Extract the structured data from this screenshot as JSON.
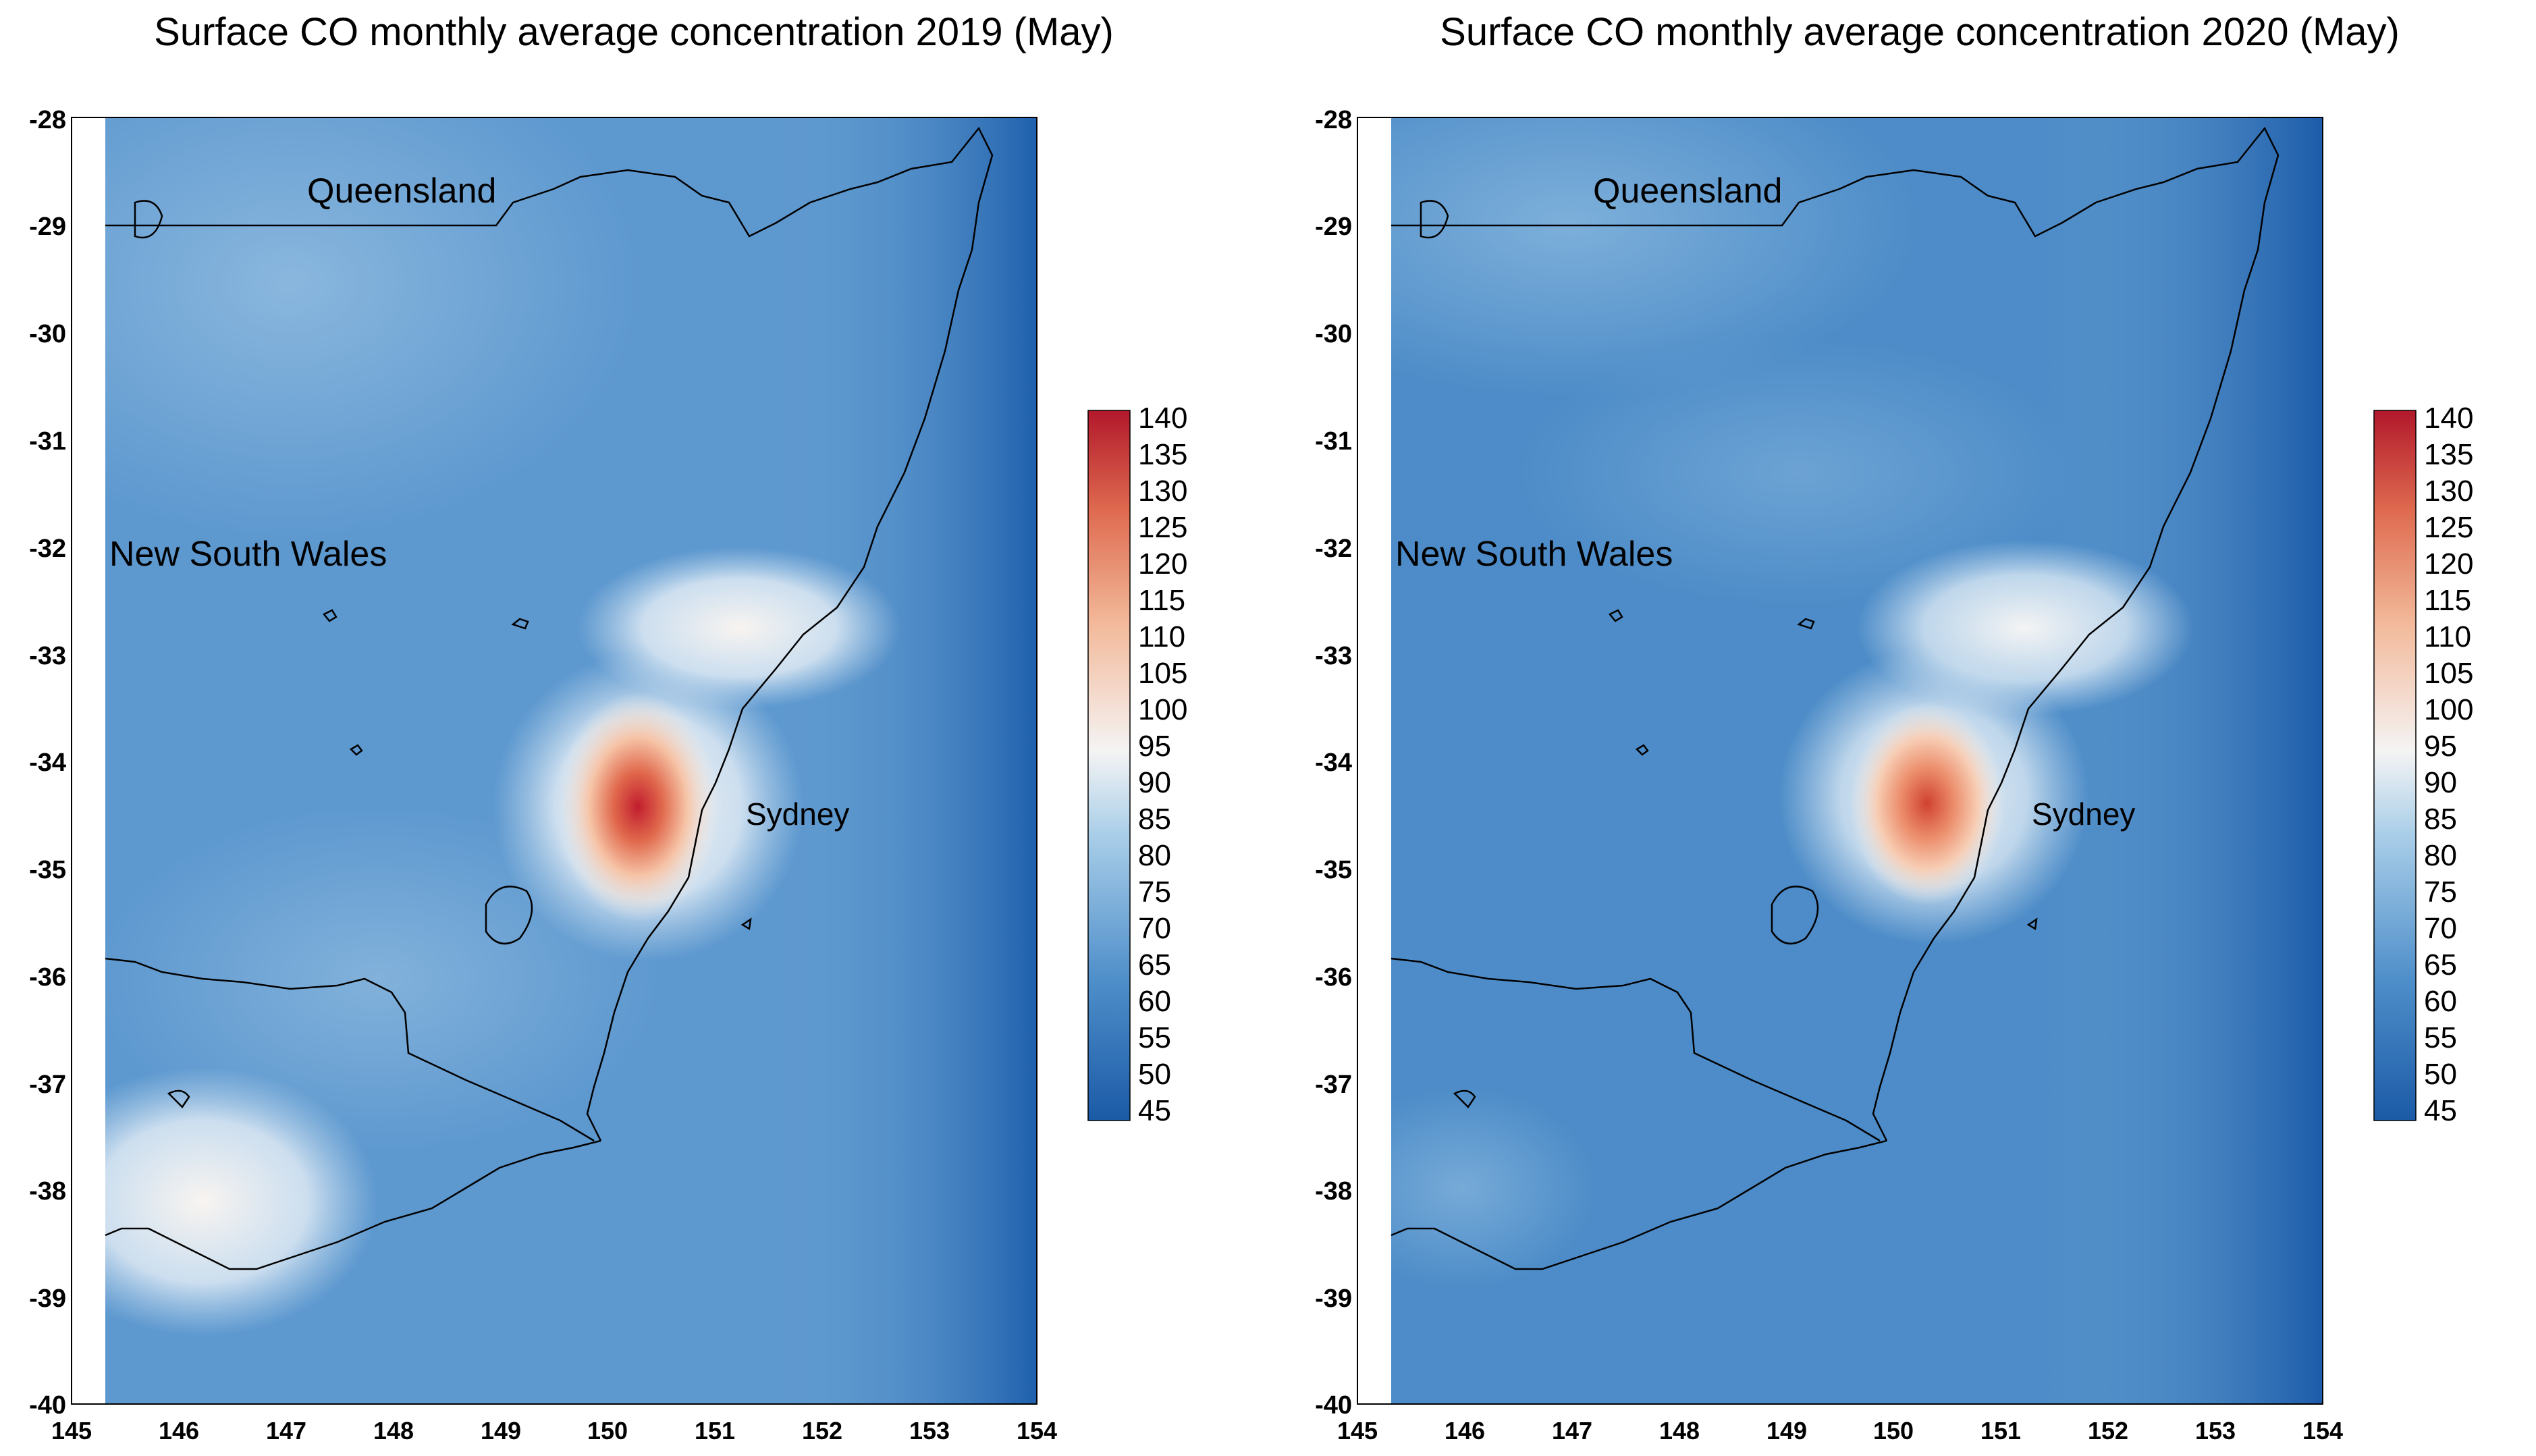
{
  "maps": [
    {
      "title": "Surface CO monthly average concentration 2019 (May)",
      "hotspot_peak": 140,
      "regions": [
        "Queensland",
        "New South Wales",
        "Sydney"
      ]
    },
    {
      "title": "Surface CO monthly average concentration 2020 (May)",
      "hotspot_peak": 130,
      "regions": [
        "Queensland",
        "New South Wales",
        "Sydney"
      ]
    }
  ],
  "axes": {
    "x_ticks": [
      "145",
      "146",
      "147",
      "148",
      "149",
      "150",
      "151",
      "152",
      "153",
      "154"
    ],
    "y_ticks": [
      "-28",
      "-29",
      "-30",
      "-31",
      "-32",
      "-33",
      "-34",
      "-35",
      "-36",
      "-37",
      "-38",
      "-39",
      "-40"
    ]
  },
  "colorbar": {
    "min": 45,
    "max": 140,
    "labels": [
      "140",
      "135",
      "130",
      "125",
      "120",
      "115",
      "110",
      "105",
      "100",
      "95",
      "90",
      "85",
      "80",
      "75",
      "70",
      "65",
      "60",
      "55",
      "50",
      "45"
    ],
    "colors": {
      "low": "#1b5aa6",
      "mid_low": "#6aa8d6",
      "mid": "#f4f4f4",
      "mid_high": "#f0a07e",
      "high": "#b2182b"
    }
  }
}
